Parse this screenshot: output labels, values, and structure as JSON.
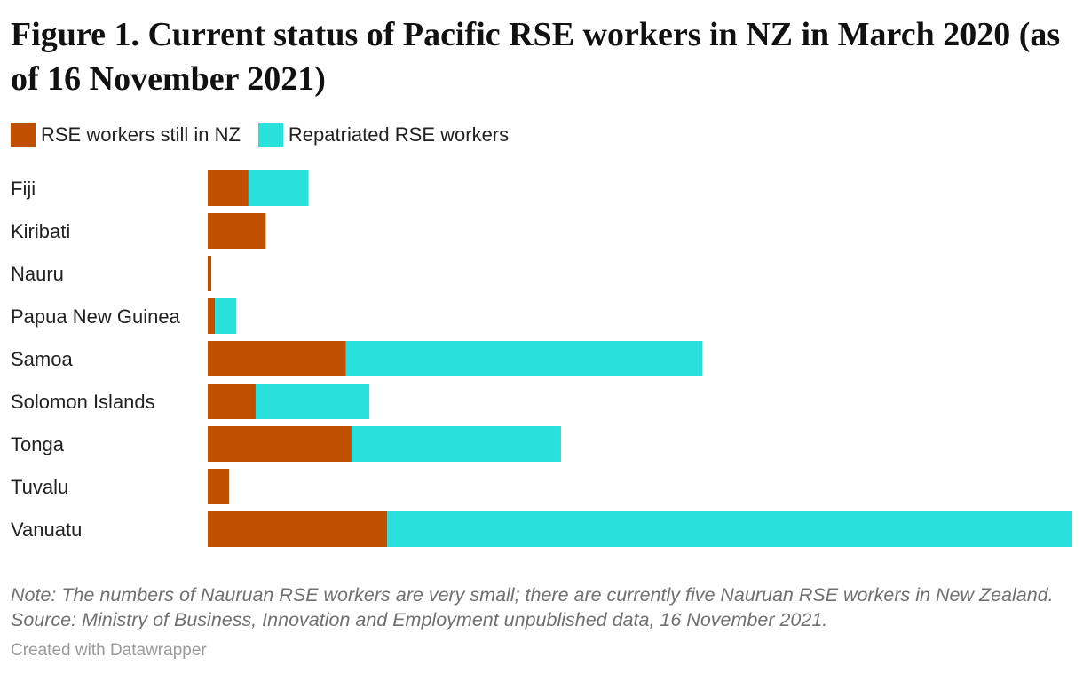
{
  "chart_data": {
    "type": "bar",
    "orientation": "horizontal",
    "stacked": true,
    "title": "Figure 1. Current status of Pacific RSE workers in NZ in March 2020 (as of 16 November 2021)",
    "categories": [
      "Fiji",
      "Kiribati",
      "Nauru",
      "Papua New Guinea",
      "Samoa",
      "Solomon Islands",
      "Tonga",
      "Tuvalu",
      "Vanuatu"
    ],
    "series": [
      {
        "name": "RSE workers still in NZ",
        "color": "#c05000",
        "values": [
          57,
          81,
          5,
          10,
          193,
          67,
          201,
          30,
          251
        ]
      },
      {
        "name": "Repatriated RSE workers",
        "color": "#29e0dc",
        "values": [
          84,
          0,
          0,
          30,
          499,
          159,
          293,
          0,
          958
        ]
      }
    ],
    "xlim": [
      0,
      1209
    ],
    "grid": false,
    "legend_position": "top-left",
    "note": "Note: The numbers of Nauruan RSE workers are very small; there are currently five Nauruan RSE workers in New Zealand. Source: Ministry of Business, Innovation and Employment unpublished data, 16 November 2021.",
    "credit": "Created with Datawrapper"
  }
}
